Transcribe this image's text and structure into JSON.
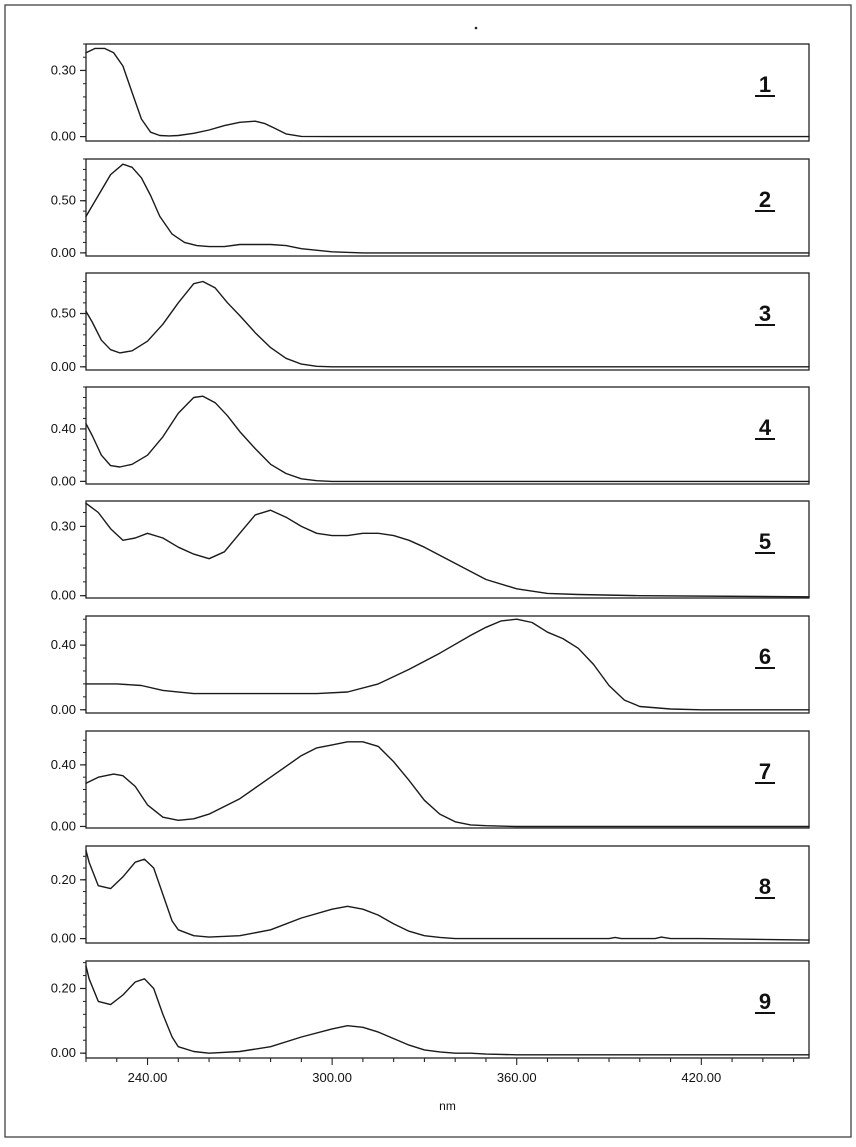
{
  "chart_data": {
    "type": "line",
    "xlabel": "nm",
    "xlim": [
      220,
      455
    ],
    "xticks": [
      240,
      300,
      360,
      420
    ],
    "xtick_labels": [
      "240.00",
      "300.00",
      "360.00",
      "420.00"
    ],
    "grid": false,
    "colors": {
      "line": "#1a1a1a",
      "frame": "#222222",
      "outer_border": "#333333"
    },
    "panels": [
      {
        "label": "1",
        "ylim": [
          -0.02,
          0.42
        ],
        "yticks": [
          0.0,
          0.3
        ],
        "ytick_labels": [
          "0.00",
          "0.30"
        ],
        "x": [
          220,
          223,
          226,
          229,
          232,
          235,
          238,
          241,
          244,
          247,
          250,
          255,
          260,
          265,
          270,
          275,
          278,
          281,
          285,
          290,
          300,
          330,
          360,
          400,
          455
        ],
        "y": [
          0.38,
          0.4,
          0.4,
          0.38,
          0.32,
          0.2,
          0.08,
          0.02,
          0.005,
          0.003,
          0.005,
          0.015,
          0.03,
          0.05,
          0.065,
          0.07,
          0.06,
          0.04,
          0.012,
          0.001,
          0.0,
          0.0,
          0.0,
          0.0,
          0.0
        ]
      },
      {
        "label": "2",
        "ylim": [
          -0.03,
          0.9
        ],
        "yticks": [
          0.0,
          0.5
        ],
        "ytick_labels": [
          "0.00",
          "0.50"
        ],
        "x": [
          220,
          224,
          228,
          232,
          235,
          238,
          241,
          244,
          248,
          252,
          256,
          260,
          265,
          270,
          275,
          280,
          285,
          290,
          300,
          310,
          330,
          360,
          400,
          455
        ],
        "y": [
          0.35,
          0.55,
          0.75,
          0.85,
          0.82,
          0.72,
          0.55,
          0.35,
          0.18,
          0.1,
          0.07,
          0.06,
          0.06,
          0.08,
          0.08,
          0.08,
          0.07,
          0.04,
          0.01,
          0.0,
          0.0,
          0.0,
          0.0,
          0.0
        ]
      },
      {
        "label": "3",
        "ylim": [
          -0.03,
          0.88
        ],
        "yticks": [
          0.0,
          0.5
        ],
        "ytick_labels": [
          "0.00",
          "0.50"
        ],
        "x": [
          220,
          222,
          225,
          228,
          231,
          235,
          240,
          245,
          250,
          255,
          258,
          262,
          266,
          270,
          275,
          280,
          285,
          290,
          295,
          300,
          320,
          360,
          400,
          455
        ],
        "y": [
          0.52,
          0.42,
          0.25,
          0.16,
          0.13,
          0.15,
          0.24,
          0.4,
          0.6,
          0.78,
          0.8,
          0.74,
          0.6,
          0.48,
          0.32,
          0.18,
          0.08,
          0.025,
          0.005,
          0.0,
          0.0,
          0.0,
          0.0,
          0.0
        ]
      },
      {
        "label": "4",
        "ylim": [
          -0.02,
          0.72
        ],
        "yticks": [
          0.0,
          0.4
        ],
        "ytick_labels": [
          "0.00",
          "0.40"
        ],
        "x": [
          220,
          222,
          225,
          228,
          231,
          235,
          240,
          245,
          250,
          255,
          258,
          262,
          266,
          270,
          275,
          280,
          285,
          290,
          295,
          300,
          320,
          360,
          400,
          455
        ],
        "y": [
          0.44,
          0.35,
          0.2,
          0.12,
          0.11,
          0.13,
          0.2,
          0.34,
          0.52,
          0.64,
          0.65,
          0.6,
          0.5,
          0.38,
          0.25,
          0.13,
          0.06,
          0.02,
          0.005,
          0.0,
          0.0,
          0.0,
          0.0,
          0.0
        ]
      },
      {
        "label": "5",
        "ylim": [
          -0.01,
          0.41
        ],
        "yticks": [
          0.0,
          0.3
        ],
        "ytick_labels": [
          "0.00",
          "0.30"
        ],
        "x": [
          220,
          224,
          228,
          232,
          236,
          240,
          245,
          250,
          255,
          260,
          265,
          270,
          275,
          280,
          285,
          290,
          295,
          300,
          305,
          310,
          315,
          320,
          325,
          330,
          340,
          350,
          360,
          370,
          380,
          400,
          455
        ],
        "y": [
          0.4,
          0.36,
          0.29,
          0.24,
          0.25,
          0.27,
          0.25,
          0.21,
          0.18,
          0.16,
          0.19,
          0.27,
          0.35,
          0.37,
          0.34,
          0.3,
          0.27,
          0.26,
          0.26,
          0.27,
          0.27,
          0.26,
          0.24,
          0.21,
          0.14,
          0.07,
          0.03,
          0.01,
          0.005,
          0.0,
          -0.005
        ]
      },
      {
        "label": "6",
        "ylim": [
          -0.02,
          0.58
        ],
        "yticks": [
          0.0,
          0.4
        ],
        "ytick_labels": [
          "0.00",
          "0.40"
        ],
        "x": [
          220,
          230,
          238,
          245,
          255,
          265,
          280,
          295,
          305,
          315,
          325,
          335,
          345,
          350,
          355,
          360,
          365,
          370,
          375,
          380,
          385,
          390,
          395,
          400,
          410,
          420,
          455
        ],
        "y": [
          0.16,
          0.16,
          0.15,
          0.12,
          0.1,
          0.1,
          0.1,
          0.1,
          0.11,
          0.16,
          0.25,
          0.35,
          0.46,
          0.51,
          0.55,
          0.56,
          0.54,
          0.48,
          0.44,
          0.38,
          0.28,
          0.15,
          0.06,
          0.02,
          0.005,
          0.0,
          0.0
        ]
      },
      {
        "label": "7",
        "ylim": [
          -0.01,
          0.62
        ],
        "yticks": [
          0.0,
          0.4
        ],
        "ytick_labels": [
          "0.00",
          "0.40"
        ],
        "x": [
          220,
          224,
          229,
          232,
          236,
          240,
          245,
          250,
          255,
          260,
          270,
          280,
          290,
          295,
          300,
          305,
          310,
          315,
          320,
          325,
          330,
          335,
          340,
          345,
          350,
          360,
          370,
          400,
          455
        ],
        "y": [
          0.28,
          0.32,
          0.34,
          0.33,
          0.26,
          0.14,
          0.06,
          0.04,
          0.05,
          0.08,
          0.18,
          0.32,
          0.46,
          0.51,
          0.53,
          0.55,
          0.55,
          0.52,
          0.42,
          0.3,
          0.17,
          0.08,
          0.03,
          0.01,
          0.005,
          0.0,
          0.0,
          0.0,
          0.0
        ]
      },
      {
        "label": "8",
        "ylim": [
          -0.015,
          0.315
        ],
        "yticks": [
          0.0,
          0.2
        ],
        "ytick_labels": [
          "0.00",
          "0.20"
        ],
        "x": [
          220,
          221,
          224,
          228,
          232,
          236,
          239,
          242,
          245,
          248,
          250,
          255,
          260,
          270,
          280,
          290,
          300,
          305,
          310,
          315,
          320,
          325,
          330,
          335,
          340,
          345,
          350,
          360,
          380,
          390,
          392,
          394,
          396,
          400,
          405,
          407,
          410,
          412,
          415,
          420,
          455
        ],
        "y": [
          0.3,
          0.26,
          0.18,
          0.17,
          0.21,
          0.26,
          0.27,
          0.24,
          0.15,
          0.06,
          0.03,
          0.01,
          0.005,
          0.01,
          0.03,
          0.07,
          0.1,
          0.11,
          0.1,
          0.08,
          0.05,
          0.025,
          0.01,
          0.004,
          0.0,
          0.0,
          0.0,
          0.0,
          0.0,
          0.0,
          0.004,
          0.0,
          0.0,
          0.0,
          0.0,
          0.005,
          0.0,
          0.0,
          0.0,
          0.0,
          -0.005
        ]
      },
      {
        "label": "9",
        "ylim": [
          -0.015,
          0.285
        ],
        "yticks": [
          0.0,
          0.2
        ],
        "ytick_labels": [
          "0.00",
          "0.20"
        ],
        "x": [
          220,
          221,
          224,
          228,
          232,
          236,
          239,
          242,
          245,
          248,
          250,
          255,
          260,
          270,
          280,
          290,
          300,
          305,
          310,
          315,
          320,
          325,
          330,
          335,
          340,
          345,
          350,
          360,
          380,
          400,
          455
        ],
        "y": [
          0.27,
          0.23,
          0.16,
          0.15,
          0.18,
          0.22,
          0.23,
          0.2,
          0.12,
          0.05,
          0.02,
          0.005,
          0.0,
          0.005,
          0.02,
          0.05,
          0.075,
          0.085,
          0.08,
          0.065,
          0.045,
          0.025,
          0.01,
          0.004,
          0.0,
          0.0,
          -0.003,
          -0.005,
          -0.005,
          -0.005,
          -0.005
        ]
      }
    ]
  }
}
